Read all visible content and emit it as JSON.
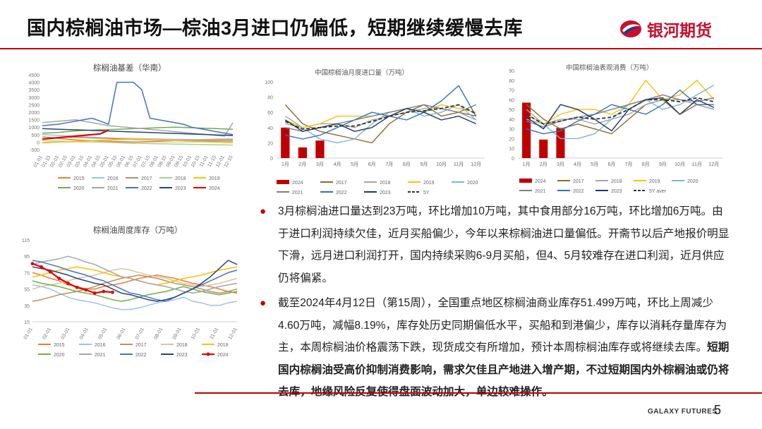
{
  "header": {
    "title": "国内棕榈油市场—棕油3月进口仍偏低，短期继续缓慢去库",
    "logo_text": "银河期货"
  },
  "footer": {
    "company": "GALAXY FUTURES",
    "page": "5"
  },
  "colors": {
    "accent": "#c00000",
    "logo_red": "#c8102e",
    "logo_blue": "#1f3c88"
  },
  "chart_data": [
    {
      "id": "basis",
      "type": "line",
      "title": "棕榈油基差（华南）",
      "x_ticks": [
        "01-01",
        "01-15",
        "02-01",
        "02-15",
        "03-01",
        "03-15",
        "04-01",
        "04-15",
        "05-01",
        "05-15",
        "06-01",
        "06-15",
        "07-01",
        "07-15",
        "08-01",
        "08-15",
        "09-01",
        "09-15",
        "10-01",
        "10-15",
        "11-01",
        "11-15",
        "12-01",
        "12-15"
      ],
      "y_ticks": [
        4500,
        4000,
        3500,
        3000,
        2500,
        2000,
        1500,
        1000,
        500,
        0,
        -500
      ],
      "ylim": [
        -500,
        4500
      ],
      "series": [
        {
          "name": "2015",
          "color": "#ed7d31",
          "values": [
            350,
            300,
            250,
            200,
            150,
            120,
            100,
            80,
            60,
            40,
            20,
            0,
            20,
            40,
            60,
            80,
            100,
            120,
            150,
            170,
            180,
            190,
            200,
            200
          ]
        },
        {
          "name": "2016",
          "color": "#9dc3e6",
          "values": [
            500,
            480,
            450,
            420,
            380,
            350,
            330,
            300,
            280,
            260,
            250,
            240,
            230,
            220,
            210,
            200,
            190,
            180,
            170,
            160,
            150,
            150,
            140,
            140
          ]
        },
        {
          "name": "2017",
          "color": "#b7925d",
          "values": [
            200,
            250,
            300,
            350,
            320,
            300,
            280,
            260,
            240,
            220,
            200,
            180,
            160,
            150,
            140,
            130,
            120,
            110,
            100,
            90,
            80,
            80,
            70,
            70
          ]
        },
        {
          "name": "2018",
          "color": "#a9d18e",
          "values": [
            100,
            80,
            60,
            40,
            30,
            20,
            10,
            0,
            -20,
            -40,
            -60,
            -80,
            -90,
            -100,
            -110,
            -120,
            -130,
            -140,
            -150,
            -160,
            -170,
            -180,
            -190,
            -200
          ]
        },
        {
          "name": "2019",
          "color": "#ffc000",
          "values": [
            -50,
            -30,
            0,
            30,
            60,
            80,
            100,
            120,
            140,
            160,
            180,
            200,
            180,
            160,
            140,
            120,
            100,
            80,
            60,
            40,
            20,
            0,
            -20,
            -40
          ]
        },
        {
          "name": "2020",
          "color": "#70ad47",
          "values": [
            600,
            620,
            650,
            700,
            750,
            780,
            800,
            820,
            840,
            860,
            880,
            900,
            920,
            940,
            960,
            980,
            1000,
            980,
            960,
            940,
            920,
            900,
            880,
            860
          ]
        },
        {
          "name": "2021",
          "color": "#a5a5a5",
          "values": [
            1300,
            1350,
            1400,
            1450,
            1500,
            1400,
            1300,
            1200,
            1100,
            1050,
            1000,
            950,
            900,
            850,
            800,
            750,
            700,
            650,
            600,
            550,
            500,
            450,
            400,
            1300
          ]
        },
        {
          "name": "2022",
          "color": "#4472c4",
          "values": [
            1100,
            1150,
            1200,
            1300,
            1400,
            1500,
            1600,
            1400,
            1200,
            4000,
            4000,
            4000,
            3500,
            1600,
            1500,
            1400,
            1300,
            1200,
            1000,
            900,
            800,
            700,
            600,
            500
          ]
        },
        {
          "name": "2023",
          "color": "#264478",
          "values": [
            900,
            880,
            860,
            840,
            820,
            800,
            780,
            760,
            740,
            720,
            700,
            680,
            660,
            640,
            620,
            600,
            580,
            560,
            540,
            520,
            500,
            480,
            460,
            440
          ]
        },
        {
          "name": "2024",
          "color": "#e00000",
          "values": [
            200,
            250,
            300,
            350,
            400,
            450,
            500,
            550,
            800
          ]
        }
      ],
      "legend": [
        "2015",
        "2016",
        "2017",
        "2018",
        "2019",
        "2020",
        "2021",
        "2022",
        "2023",
        "2024"
      ]
    },
    {
      "id": "import",
      "type": "bar+line",
      "title": "中国棕榈油月度进口量（万吨）",
      "categories": [
        "1月",
        "2月",
        "3月",
        "4月",
        "5月",
        "6月",
        "7月",
        "8月",
        "9月",
        "10月",
        "11月",
        "12月"
      ],
      "y_ticks": [
        0,
        20,
        40,
        60,
        80,
        100
      ],
      "ylim": [
        0,
        100
      ],
      "bars": {
        "name": "2024",
        "color": "#c00000",
        "values": [
          40,
          14,
          23
        ]
      },
      "series": [
        {
          "name": "2017",
          "color": "#8c6d2c",
          "values": [
            70,
            45,
            35,
            30,
            25,
            20,
            45,
            60,
            70,
            55,
            60,
            55
          ]
        },
        {
          "name": "2018",
          "color": "#a5a5a5",
          "values": [
            55,
            40,
            45,
            45,
            40,
            50,
            55,
            60,
            65,
            65,
            60,
            50
          ]
        },
        {
          "name": "2019",
          "color": "#ffc000",
          "values": [
            50,
            40,
            45,
            55,
            55,
            55,
            60,
            65,
            60,
            70,
            65,
            60
          ]
        },
        {
          "name": "2020",
          "color": "#7ab6d9",
          "values": [
            45,
            40,
            25,
            20,
            25,
            45,
            60,
            65,
            55,
            60,
            70,
            50
          ]
        },
        {
          "name": "2021",
          "color": "#808080",
          "values": [
            40,
            35,
            40,
            45,
            50,
            55,
            60,
            65,
            70,
            65,
            60,
            70
          ]
        },
        {
          "name": "2022",
          "color": "#2e75b6",
          "values": [
            30,
            25,
            30,
            40,
            50,
            60,
            55,
            50,
            60,
            75,
            95,
            55
          ]
        },
        {
          "name": "2023",
          "color": "#1f3864",
          "values": [
            50,
            35,
            40,
            45,
            35,
            40,
            55,
            65,
            60,
            50,
            55,
            45
          ]
        },
        {
          "name": "5Y",
          "color": "#333333",
          "dashed": true,
          "values": [
            48,
            38,
            40,
            42,
            42,
            48,
            55,
            60,
            62,
            65,
            70,
            58
          ]
        }
      ],
      "legend": [
        "2024",
        "2017",
        "2018",
        "2019",
        "2020",
        "2021",
        "2022",
        "2023",
        "5Y"
      ]
    },
    {
      "id": "consumption",
      "type": "bar+line",
      "title": "中国棕榈油表观消费（万吨）",
      "categories": [
        "1月",
        "2月",
        "3月",
        "4月",
        "5月",
        "6月",
        "7月",
        "8月",
        "9月",
        "10月",
        "11月",
        "12月"
      ],
      "y_ticks": [
        0,
        10,
        20,
        30,
        40,
        50,
        60,
        70,
        80,
        90
      ],
      "ylim": [
        0,
        90
      ],
      "bars": {
        "name": "2024",
        "color": "#c00000",
        "values": [
          57,
          19,
          31
        ]
      },
      "series": [
        {
          "name": "2017",
          "color": "#8c6d2c",
          "values": [
            55,
            40,
            30,
            35,
            30,
            25,
            40,
            55,
            60,
            45,
            55,
            50
          ]
        },
        {
          "name": "2018",
          "color": "#a5a5a5",
          "values": [
            50,
            35,
            40,
            40,
            35,
            40,
            45,
            55,
            60,
            60,
            55,
            50
          ]
        },
        {
          "name": "2019",
          "color": "#ffc000",
          "values": [
            45,
            35,
            45,
            50,
            50,
            45,
            55,
            80,
            60,
            65,
            80,
            60
          ]
        },
        {
          "name": "2020",
          "color": "#7ab6d9",
          "values": [
            40,
            35,
            20,
            20,
            25,
            40,
            55,
            60,
            50,
            55,
            65,
            75
          ]
        },
        {
          "name": "2021",
          "color": "#808080",
          "values": [
            38,
            32,
            38,
            42,
            45,
            50,
            55,
            60,
            65,
            60,
            58,
            62
          ]
        },
        {
          "name": "2022",
          "color": "#2e75b6",
          "values": [
            30,
            25,
            28,
            38,
            45,
            55,
            50,
            45,
            55,
            70,
            55,
            55
          ]
        },
        {
          "name": "2023",
          "color": "#1f3864",
          "values": [
            42,
            30,
            55,
            50,
            40,
            28,
            50,
            60,
            62,
            45,
            60,
            52
          ]
        },
        {
          "name": "5Y aver",
          "color": "#333333",
          "dashed": true,
          "values": [
            45,
            35,
            38,
            42,
            40,
            42,
            50,
            60,
            60,
            58,
            62,
            58
          ]
        }
      ],
      "legend": [
        "2024",
        "2017",
        "2018",
        "2019",
        "2020",
        "2021",
        "2022",
        "2023",
        "5Y aver"
      ]
    },
    {
      "id": "stock",
      "type": "line",
      "title": "棕榈油周度库存（万吨）",
      "x_ticks": [
        "01-01",
        "02-01",
        "03-01",
        "04-01",
        "05-01",
        "06-01",
        "07-01",
        "08-01",
        "09-01",
        "10-01",
        "11-01",
        "12-01"
      ],
      "y_ticks": [
        115,
        95,
        75,
        55,
        35,
        15
      ],
      "ylim": [
        15,
        115
      ],
      "series": [
        {
          "name": "2015",
          "color": "#ed7d31",
          "values": [
            75,
            72,
            68,
            65,
            60,
            58,
            55,
            55,
            58,
            60,
            62,
            65,
            68,
            70,
            72,
            70,
            68,
            65,
            62,
            60,
            58,
            55,
            52,
            50
          ]
        },
        {
          "name": "2016",
          "color": "#9dc3e6",
          "values": [
            60,
            58,
            55,
            50,
            45,
            42,
            40,
            38,
            35,
            32,
            30,
            30,
            32,
            35,
            38,
            40,
            42,
            45,
            40,
            38,
            35,
            35,
            38,
            40
          ]
        },
        {
          "name": "2017",
          "color": "#b7925d",
          "values": [
            40,
            42,
            45,
            48,
            50,
            52,
            55,
            58,
            62,
            65,
            68,
            70,
            72,
            70,
            68,
            65,
            62,
            60,
            58,
            55,
            52,
            50,
            52,
            55
          ]
        },
        {
          "name": "2018",
          "color": "#d9c7a0",
          "values": [
            55,
            58,
            60,
            62,
            65,
            68,
            70,
            72,
            75,
            78,
            80,
            78,
            75,
            72,
            70,
            68,
            65,
            62,
            60,
            58,
            60,
            62,
            65,
            68
          ]
        },
        {
          "name": "2019",
          "color": "#ffc000",
          "values": [
            70,
            72,
            75,
            78,
            80,
            82,
            80,
            78,
            75,
            72,
            70,
            68,
            65,
            62,
            60,
            62,
            65,
            68,
            70,
            72,
            75,
            78,
            80,
            82
          ]
        },
        {
          "name": "2020",
          "color": "#70ad47",
          "values": [
            65,
            62,
            60,
            58,
            55,
            52,
            50,
            48,
            45,
            42,
            40,
            42,
            45,
            48,
            50,
            52,
            55,
            58,
            55,
            52,
            50,
            48,
            50,
            52
          ]
        },
        {
          "name": "2021",
          "color": "#a5a5a5",
          "values": [
            85,
            88,
            90,
            92,
            95,
            92,
            88,
            85,
            80,
            75,
            70,
            68,
            65,
            62,
            60,
            58,
            55,
            52,
            50,
            52,
            55,
            58,
            60,
            62
          ]
        },
        {
          "name": "2022",
          "color": "#4472c4",
          "values": [
            90,
            88,
            85,
            82,
            78,
            75,
            72,
            68,
            65,
            60,
            55,
            50,
            48,
            45,
            42,
            40,
            45,
            50,
            55,
            60,
            65,
            70,
            75,
            78
          ]
        },
        {
          "name": "2023",
          "color": "#264478",
          "values": [
            82,
            80,
            78,
            75,
            72,
            68,
            65,
            62,
            60,
            55,
            50,
            48,
            45,
            42,
            40,
            42,
            45,
            50,
            55,
            62,
            70,
            80,
            90,
            85
          ]
        },
        {
          "name": "2024",
          "color": "#e00000",
          "values": [
            86,
            82,
            76,
            68,
            62,
            57,
            54,
            50,
            52,
            51
          ]
        }
      ],
      "legend": [
        "2015",
        "2016",
        "2017",
        "2018",
        "2019",
        "2020",
        "2021",
        "2022",
        "2023",
        "2024"
      ]
    }
  ],
  "text": {
    "p1": "3月棕榈油进口量达到23万吨，环比增加10万吨，其中食用部分16万吨，环比增加6万吨。由于进口利润持续欠佳，近月买船偏少，今年以来棕榈油进口量偏低。开斋节以后产地报价明显下滑，远月进口利润打开，国内持续采购6-9月买船，但4、5月较难存在进口利润，近月供应仍将偏紧。",
    "p2_normal": "截至2024年4月12日（第15周），全国重点地区棕榈油商业库存51.499万吨，环比上周减少4.60万吨，减幅8.19%，库存处历史同期偏低水平，买船和到港偏少，库存以消耗存量库存为主，本周棕榈油价格震荡下跌，现货成交有所增加，预计本周棕榈油库存或将继续去库。",
    "p2_bold": "短期国内棕榈油受高价抑制消费影响，需求欠佳且产地进入增产期，不过短期国内外棕榈油或仍将去库，地缘风险反复使得盘面波动加大，单边较难操作。"
  }
}
